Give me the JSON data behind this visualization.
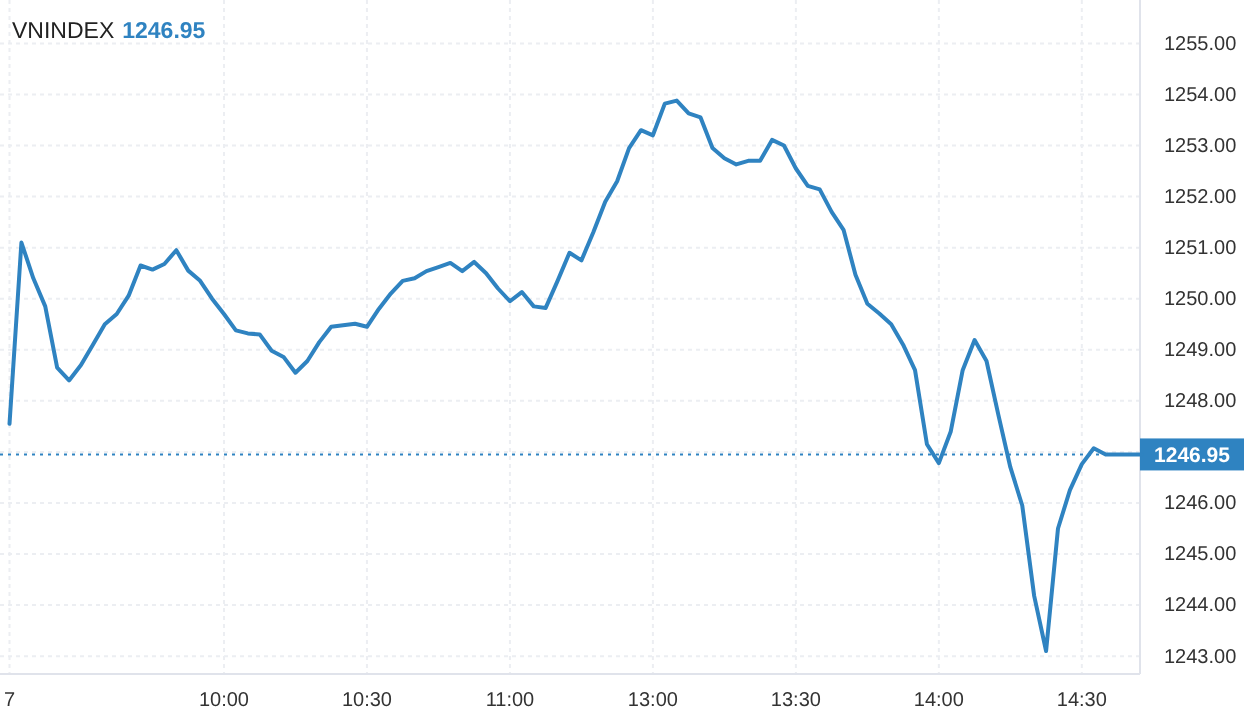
{
  "chart_data": {
    "type": "line",
    "title": "VNINDEX",
    "subtitle": "1246.95",
    "categories": [
      "7",
      null,
      null,
      null,
      null,
      null,
      null,
      null,
      null,
      null,
      null,
      null,
      null,
      null,
      null,
      null,
      null,
      null,
      "10:00",
      null,
      null,
      null,
      null,
      null,
      null,
      null,
      null,
      null,
      null,
      null,
      "10:30",
      null,
      null,
      null,
      null,
      null,
      null,
      null,
      null,
      null,
      null,
      null,
      "11:00",
      null,
      null,
      null,
      null,
      null,
      null,
      null,
      null,
      null,
      null,
      null,
      "13:00",
      null,
      null,
      null,
      null,
      null,
      null,
      null,
      null,
      null,
      null,
      null,
      "13:30",
      null,
      null,
      null,
      null,
      null,
      null,
      null,
      null,
      null,
      null,
      null,
      "14:00",
      null,
      null,
      null,
      null,
      null,
      null,
      null,
      null,
      null,
      null,
      null,
      "14:30",
      null,
      null,
      null,
      null,
      null
    ],
    "series": [
      {
        "color": "#2f83c1",
        "values": [
          1247.55,
          1251.1,
          1250.4,
          1249.85,
          1248.65,
          1248.4,
          1248.7,
          1249.1,
          1249.5,
          1249.7,
          1250.06,
          1250.65,
          1250.57,
          1250.68,
          1250.95,
          1250.55,
          1250.35,
          1250.0,
          1249.7,
          1249.38,
          1249.32,
          1249.3,
          1248.98,
          1248.86,
          1248.55,
          1248.78,
          1249.15,
          1249.45,
          1249.48,
          1249.51,
          1249.45,
          1249.8,
          1250.1,
          1250.35,
          1250.4,
          1250.54,
          1250.62,
          1250.7,
          1250.54,
          1250.72,
          1250.5,
          1250.2,
          1249.95,
          1250.13,
          1249.85,
          1249.82,
          1250.35,
          1250.9,
          1250.75,
          1251.3,
          1251.9,
          1252.3,
          1252.95,
          1253.3,
          1253.2,
          1253.82,
          1253.88,
          1253.63,
          1253.55,
          1252.95,
          1252.75,
          1252.63,
          1252.7,
          1252.7,
          1253.11,
          1253.0,
          1252.55,
          1252.21,
          1252.14,
          1251.7,
          1251.35,
          1250.47,
          1249.9,
          1249.71,
          1249.5,
          1249.1,
          1248.6,
          1247.15,
          1246.78,
          1247.4,
          1248.6,
          1249.19,
          1248.78,
          1247.72,
          1246.7,
          1245.95,
          1244.18,
          1243.1,
          1245.5,
          1246.25,
          1246.76,
          1247.07,
          1246.95,
          1246.95,
          1246.95,
          1246.95
        ]
      }
    ],
    "ylim": [
      1242.65,
      1255.85
    ],
    "yticks": [
      {
        "value": 1243,
        "label": "1243.00"
      },
      {
        "value": 1244,
        "label": "1244.00"
      },
      {
        "value": 1245,
        "label": "1245.00"
      },
      {
        "value": 1246,
        "label": "1246.00"
      },
      {
        "value": 1247,
        "label": null
      },
      {
        "value": 1248,
        "label": "1248.00"
      },
      {
        "value": 1249,
        "label": "1249.00"
      },
      {
        "value": 1250,
        "label": "1250.00"
      },
      {
        "value": 1251,
        "label": "1251.00"
      },
      {
        "value": 1252,
        "label": "1252.00"
      },
      {
        "value": 1253,
        "label": "1253.00"
      },
      {
        "value": 1254,
        "label": "1254.00"
      },
      {
        "value": 1255,
        "label": "1255.00"
      }
    ],
    "ref_lines": [
      {
        "axis": "y",
        "value": 1246.95,
        "label": "1246.95",
        "color": "#2f83c1",
        "line_style": "dotted"
      }
    ],
    "grid": true,
    "marker": "none",
    "line_style": "solid"
  }
}
